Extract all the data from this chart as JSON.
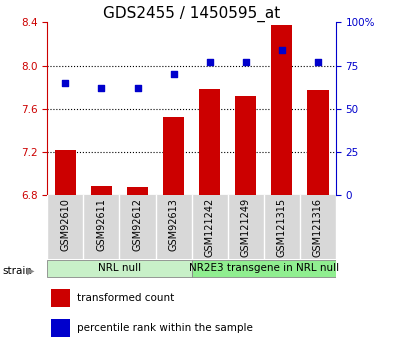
{
  "title": "GDS2455 / 1450595_at",
  "samples": [
    "GSM92610",
    "GSM92611",
    "GSM92612",
    "GSM92613",
    "GSM121242",
    "GSM121249",
    "GSM121315",
    "GSM121316"
  ],
  "transformed_counts": [
    7.22,
    6.88,
    6.87,
    7.52,
    7.78,
    7.72,
    8.38,
    7.77
  ],
  "percentile_ranks": [
    65,
    62,
    62,
    70,
    77,
    77,
    84,
    77
  ],
  "groups": [
    {
      "label": "NRL null",
      "start": 0,
      "end": 4,
      "color": "#c8f0c8"
    },
    {
      "label": "NR2E3 transgene in NRL null",
      "start": 4,
      "end": 8,
      "color": "#90ee90"
    }
  ],
  "ylim_left": [
    6.8,
    8.4
  ],
  "ylim_right": [
    0,
    100
  ],
  "yticks_left": [
    6.8,
    7.2,
    7.6,
    8.0,
    8.4
  ],
  "yticks_right": [
    0,
    25,
    50,
    75,
    100
  ],
  "bar_color": "#cc0000",
  "scatter_color": "#0000cc",
  "bar_width": 0.6,
  "axis_color_left": "#cc0000",
  "axis_color_right": "#0000cc",
  "background_color": "#ffffff",
  "group_label_fontsize": 7.5,
  "tick_fontsize": 7.5,
  "title_fontsize": 11,
  "sample_fontsize": 7,
  "legend_fontsize": 7.5
}
